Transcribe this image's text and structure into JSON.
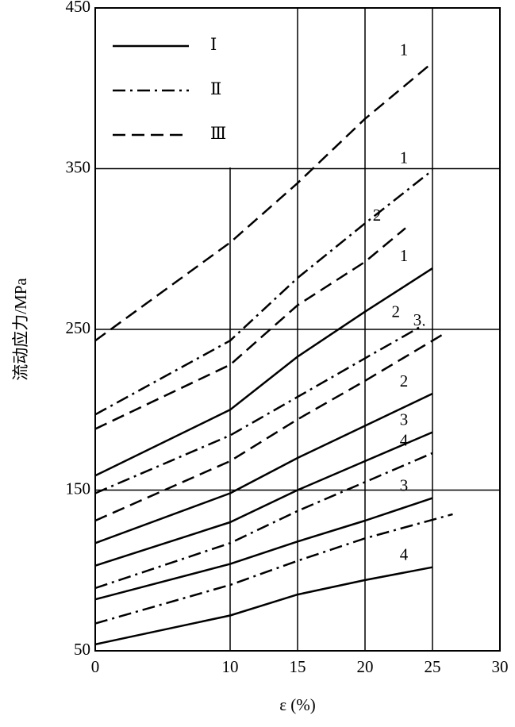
{
  "chart_data": {
    "type": "line",
    "x_label": "ε (%)",
    "y_label": "流动应力/MPa",
    "xlim": [
      0,
      30
    ],
    "xticks": [
      0,
      10,
      15,
      20,
      25,
      30
    ],
    "ylim": [
      50,
      450
    ],
    "yticks": [
      50,
      150,
      250,
      350,
      450
    ],
    "grid": true,
    "color": "#000000",
    "legend": {
      "position": "upper left",
      "entries": [
        {
          "label": "Ⅰ",
          "style": "solid"
        },
        {
          "label": "Ⅱ",
          "style": "dashdot"
        },
        {
          "label": "Ⅲ",
          "style": "dashed"
        }
      ]
    },
    "series": [
      {
        "name": "1",
        "style": "dashed",
        "x": [
          0,
          10,
          15,
          20,
          25
        ],
        "values": [
          243,
          304,
          341,
          381,
          416
        ]
      },
      {
        "name": "1",
        "style": "dashdot",
        "x": [
          0,
          10,
          15,
          20,
          25
        ],
        "values": [
          197,
          243,
          282,
          316,
          349
        ]
      },
      {
        "name": "2",
        "style": "dashed",
        "x": [
          0,
          10,
          15,
          20,
          23
        ],
        "values": [
          188,
          228,
          265,
          292,
          313
        ]
      },
      {
        "name": "1",
        "style": "solid",
        "x": [
          0,
          10,
          15,
          20,
          25
        ],
        "values": [
          159,
          200,
          233,
          261,
          288
        ]
      },
      {
        "name": "2",
        "style": "dashdot",
        "x": [
          0,
          10,
          15,
          20,
          24.4
        ],
        "values": [
          148,
          184,
          208,
          232,
          253
        ]
      },
      {
        "name": "3",
        "style": "dashed",
        "x": [
          0,
          10,
          15,
          20,
          26
        ],
        "values": [
          131,
          168,
          194,
          218,
          248
        ]
      },
      {
        "name": "2",
        "style": "solid",
        "x": [
          0,
          10,
          15,
          20,
          25
        ],
        "values": [
          117,
          148,
          170,
          190,
          210
        ]
      },
      {
        "name": "3",
        "style": "solid",
        "x": [
          0,
          10,
          15,
          20,
          25
        ],
        "values": [
          103,
          130,
          150,
          168,
          186
        ]
      },
      {
        "name": "4",
        "style": "dashdot",
        "x": [
          0,
          10,
          15,
          20,
          25
        ],
        "values": [
          89,
          117,
          137,
          155,
          173
        ]
      },
      {
        "name": "3",
        "style": "solid",
        "x": [
          0,
          10,
          15,
          20,
          25
        ],
        "values": [
          82,
          104,
          118,
          131,
          145
        ]
      },
      {
        "name": null,
        "style": "dashdot",
        "x": [
          0,
          10,
          15,
          20,
          26.5
        ],
        "values": [
          67,
          91,
          106,
          120,
          135
        ]
      },
      {
        "name": "4",
        "style": "solid",
        "x": [
          0,
          10,
          15,
          20,
          25
        ],
        "values": [
          54,
          72,
          85,
          94,
          102
        ]
      }
    ]
  }
}
